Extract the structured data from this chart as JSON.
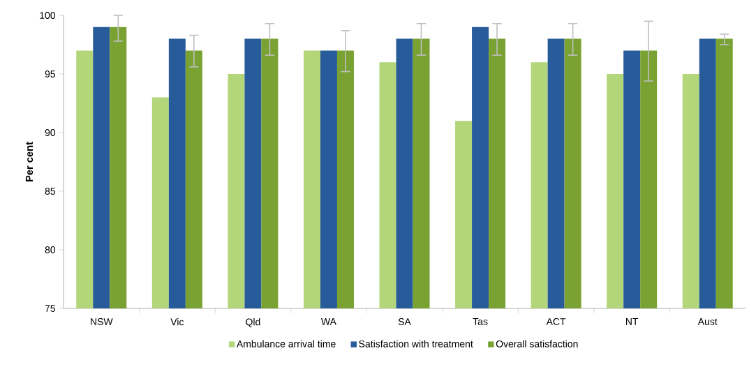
{
  "chart_data": {
    "type": "bar",
    "ylabel": "Per cent",
    "categories": [
      "NSW",
      "Vic",
      "Qld",
      "WA",
      "SA",
      "Tas",
      "ACT",
      "NT",
      "Aust"
    ],
    "series": [
      {
        "name": "Ambulance arrival time",
        "color": "#b3d67a",
        "values": [
          97,
          93,
          95,
          97,
          96,
          91,
          96,
          95,
          95
        ]
      },
      {
        "name": "Satisfaction with treatment",
        "color": "#285b9a",
        "values": [
          99,
          98,
          98,
          97,
          98,
          99,
          98,
          97,
          98
        ]
      },
      {
        "name": "Overall satisfaction",
        "color": "#79a232",
        "values": [
          99,
          97,
          98,
          97,
          98,
          98,
          98,
          97,
          98
        ],
        "errors": [
          [
            97.8,
            100
          ],
          [
            95.6,
            98.3
          ],
          [
            96.6,
            99.3
          ],
          [
            95.2,
            98.7
          ],
          [
            96.6,
            99.3
          ],
          [
            96.6,
            99.3
          ],
          [
            96.6,
            99.3
          ],
          [
            94.4,
            99.5
          ],
          [
            97.5,
            98.4
          ]
        ]
      }
    ],
    "ylim": [
      75,
      100
    ],
    "yticks": [
      75,
      80,
      85,
      90,
      95,
      100
    ],
    "grid": false,
    "legend": "bottom"
  }
}
